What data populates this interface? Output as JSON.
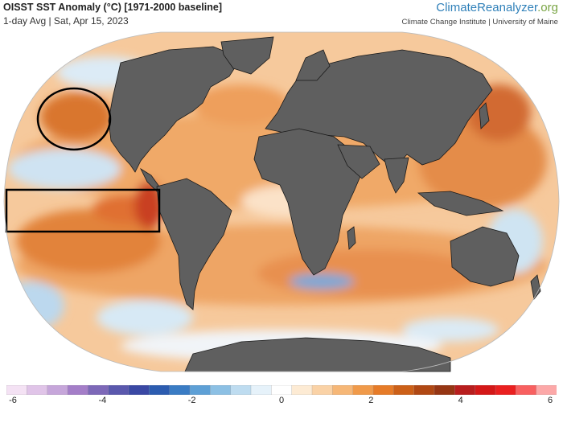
{
  "header": {
    "title": "OISST SST Anomaly (°C) [1971-2000 baseline]",
    "subtitle": "1-day Avg | Sat, Apr 15, 2023"
  },
  "brand": {
    "name_main": "ClimateReanalyzer",
    "name_suffix": ".org",
    "affiliation": "Climate Change Institute | University of Maine"
  },
  "map": {
    "projection": "Robinson-like world projection",
    "land_color": "#5f5f5f",
    "coast_color": "#1a1a1a",
    "annotations": [
      {
        "type": "ellipse",
        "region": "North-east Pacific"
      },
      {
        "type": "rectangle",
        "region": "Equatorial eastern Pacific"
      }
    ]
  },
  "colorbar": {
    "min": -6,
    "max": 6,
    "ticks": [
      "-6",
      "-4",
      "-2",
      "0",
      "2",
      "4",
      "6"
    ],
    "colors": [
      "#f4e2f4",
      "#e0c4e8",
      "#c6a6da",
      "#a47ec8",
      "#7d68b8",
      "#5a58ad",
      "#3a48a4",
      "#2c5cb0",
      "#3a7cc4",
      "#5ea0d6",
      "#8cc0e4",
      "#bedcf0",
      "#e6f2fa",
      "#ffffff",
      "#fdebd4",
      "#fad2a6",
      "#f6b777",
      "#f09a4a",
      "#e67b28",
      "#cc6018",
      "#b04814",
      "#963614",
      "#b81e1e",
      "#d41818",
      "#ea2020",
      "#f86060",
      "#fca8a8"
    ]
  }
}
